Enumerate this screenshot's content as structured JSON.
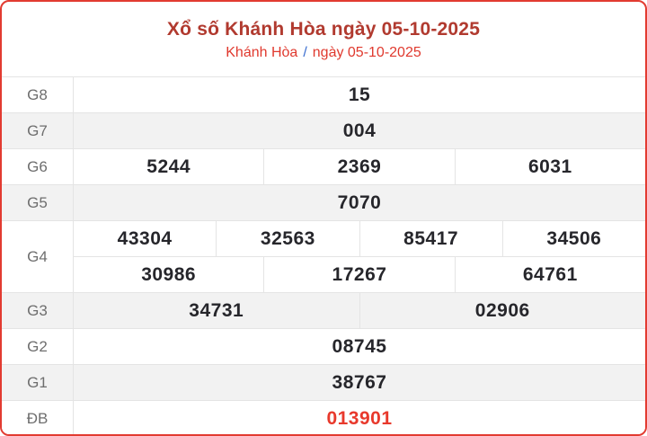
{
  "header": {
    "title": "Xổ số Khánh Hòa ngày 05-10-2025",
    "breadcrumb": {
      "region": "Khánh Hòa",
      "separator": "/",
      "date": "ngày 05-10-2025"
    }
  },
  "results_table": {
    "rows": [
      {
        "label": "G8",
        "lines": [
          [
            "15"
          ]
        ]
      },
      {
        "label": "G7",
        "lines": [
          [
            "004"
          ]
        ]
      },
      {
        "label": "G6",
        "lines": [
          [
            "5244",
            "2369",
            "6031"
          ]
        ]
      },
      {
        "label": "G5",
        "lines": [
          [
            "7070"
          ]
        ]
      },
      {
        "label": "G4",
        "lines": [
          [
            "43304",
            "32563",
            "85417",
            "34506"
          ],
          [
            "30986",
            "17267",
            "64761"
          ]
        ]
      },
      {
        "label": "G3",
        "lines": [
          [
            "34731",
            "02906"
          ]
        ]
      },
      {
        "label": "G2",
        "lines": [
          [
            "08745"
          ]
        ]
      },
      {
        "label": "G1",
        "lines": [
          [
            "38767"
          ]
        ]
      },
      {
        "label": "ĐB",
        "lines": [
          [
            "013901"
          ]
        ],
        "highlight": true
      }
    ]
  },
  "colors": {
    "card_border_red": "#e23b31",
    "title_red": "#b13a2f",
    "breadcrumb_red": "#e0392e",
    "breadcrumb_slash_blue": "#3b6ed0",
    "special_prize_red": "#e8392c",
    "row_alt_bg": "#f2f2f2",
    "label_gray": "#6e6e6e",
    "number_dark": "#26262b",
    "cell_border": "#e4e4e4"
  }
}
